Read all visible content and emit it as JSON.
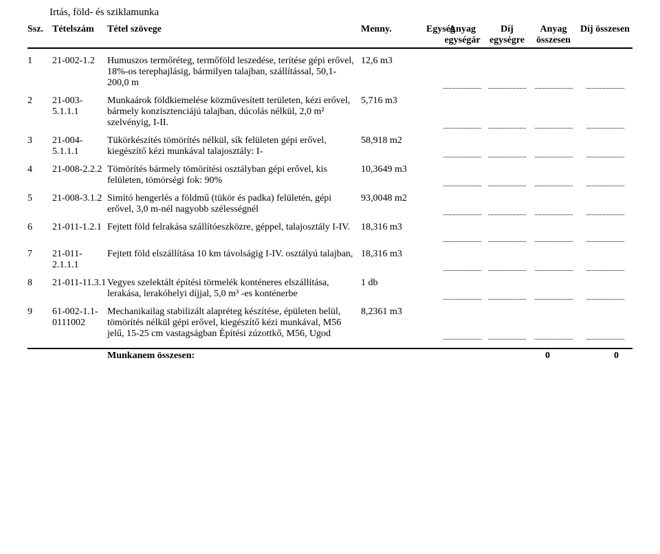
{
  "section_title": "Irtás, föld- és sziklamunka",
  "headers": {
    "ssz": "Ssz.",
    "tetelszam": "Tételszám",
    "szoveg": "Tétel szövege",
    "menny": "Menny.",
    "egyseg": "Egység",
    "anyag_egysegar_l1": "Anyag",
    "anyag_egysegar_l2": "egységár",
    "dij_egysegre_l1": "Díj",
    "dij_egysegre_l2": "egységre",
    "anyag_osszesen_l1": "Anyag",
    "anyag_osszesen_l2": "összesen",
    "dij_osszesen": "Díj összesen"
  },
  "rows": [
    {
      "ssz": "1",
      "tetelszam": "21-002-1.2",
      "szoveg": "Humuszos termőréteg, termőföld leszedése, terítése gépi erővel, 18%-os terephajlásig, bármilyen talajban, szállítással, 50,1-200,0 m",
      "menny": "12,6",
      "egyseg": "m3"
    },
    {
      "ssz": "2",
      "tetelszam": "21-003-5.1.1.1",
      "szoveg": "Munkaárok földkiemelése közművesített területen, kézi erővel, bármely konzisztenciájú talajban, dúcolás nélkül, 2,0 m² szelvényig, I-II.",
      "menny": "5,716",
      "egyseg": "m3"
    },
    {
      "ssz": "3",
      "tetelszam": "21-004-5.1.1.1",
      "szoveg": "Tükörkészítés tömörítés nélkül, sík felületen gépi erővel, kiegészítő kézi munkával talajosztály: I-",
      "menny": "58,918",
      "egyseg": "m2"
    },
    {
      "ssz": "4",
      "tetelszam": "21-008-2.2.2",
      "szoveg": "Tömörítés bármely tömörítési osztályban gépi erővel, kis felületen, tömörségi fok: 90%",
      "menny": "10,3649",
      "egyseg": "m3"
    },
    {
      "ssz": "5",
      "tetelszam": "21-008-3.1.2",
      "szoveg": "Simító hengerlés a földmű (tükör és padka) felületén, gépi erővel, 3,0 m-nél nagyobb szélességnél",
      "menny": "93,0048",
      "egyseg": "m2"
    },
    {
      "ssz": "6",
      "tetelszam": "21-011-1.2.1",
      "szoveg": "Fejtett föld felrakása szállítóeszközre, géppel, talajosztály I-IV.",
      "menny": "18,316",
      "egyseg": "m3"
    },
    {
      "ssz": "7",
      "tetelszam": "21-011-2.1.1.1",
      "szoveg": "Fejtett föld elszállítása 10 km távolságig I-IV. osztályú talajban,",
      "menny": "18,316",
      "egyseg": "m3"
    },
    {
      "ssz": "8",
      "tetelszam": "21-011-11.3.1",
      "szoveg": "Vegyes szelektált építési törmelék konténeres elszállítása, lerakása, lerakóhelyi díjjal, 5,0 m³ -es konténerbe",
      "menny": "1",
      "egyseg": "db"
    },
    {
      "ssz": "9",
      "tetelszam": "61-002-1.1-0111002",
      "szoveg": "Mechanikailag stabilizált alapréteg készítése, épületen belül, tömörítés nélkül gépi erővel, kiegészítő kézi munkával, M56 jelű, 15-25 cm vastagságban Építési zúzottkő, M56, Ugod",
      "menny": "8,2361",
      "egyseg": "m3"
    }
  ],
  "totals": {
    "label": "Munkanem összesen:",
    "anyag": "0",
    "dij": "0"
  }
}
